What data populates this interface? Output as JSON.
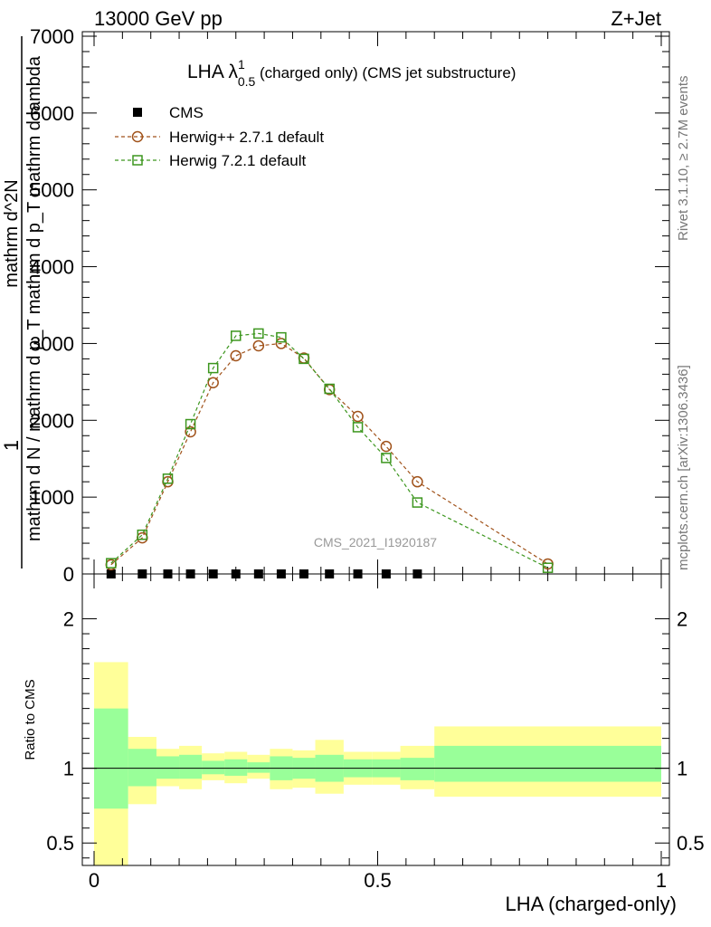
{
  "header": {
    "left": "13000 GeV pp",
    "right": "Z+Jet"
  },
  "side_labels": {
    "rivet": "Rivet 3.1.10, ≥ 2.7M events",
    "mcplots": "mcplots.cern.ch [arXiv:1306.3436]"
  },
  "watermark": "CMS_2021_I1920187",
  "chart_data": [
    {
      "type": "line",
      "title_main": "LHA λ",
      "title_sup": "1",
      "title_sub": "0.5",
      "title_rest": " (charged only) (CMS jet substructure)",
      "ylabel_main": "1",
      "ylabel_denom": "mathrm d N / mathrm d p_T mathrm d p_T mathrm d lambda",
      "ylabel_num": "mathrm d^2N",
      "xlim": [
        0,
        1
      ],
      "ylim": [
        0,
        7000
      ],
      "yticks": [
        0,
        1000,
        2000,
        3000,
        4000,
        5000,
        6000,
        7000
      ],
      "ytick_labels": [
        "0",
        "1000",
        "2000",
        "3000",
        "4000",
        "5000",
        "6000",
        "7000"
      ],
      "legend_position": "top-left",
      "x": [
        0.03,
        0.085,
        0.13,
        0.17,
        0.21,
        0.25,
        0.29,
        0.33,
        0.37,
        0.415,
        0.465,
        0.515,
        0.57,
        0.8
      ],
      "series": [
        {
          "name": "CMS",
          "marker": "square-filled",
          "color": "#000000",
          "y": [
            0,
            0,
            0,
            0,
            0,
            0,
            0,
            0,
            0,
            0,
            0,
            0,
            0,
            null
          ]
        },
        {
          "name": "Herwig++ 2.7.1 default",
          "marker": "circle-open",
          "color": "#a0521a",
          "y": [
            120,
            470,
            1200,
            1850,
            2490,
            2840,
            2970,
            3000,
            2810,
            2400,
            2050,
            1660,
            1200,
            130
          ]
        },
        {
          "name": "Herwig 7.2.1 default",
          "marker": "square-open",
          "color": "#3c961e",
          "y": [
            140,
            510,
            1240,
            1950,
            2680,
            3100,
            3130,
            3080,
            2800,
            2410,
            1910,
            1510,
            930,
            80
          ]
        }
      ]
    },
    {
      "type": "area",
      "ylabel": "Ratio to CMS",
      "xlabel": "LHA (charged-only)",
      "xlim": [
        0,
        1
      ],
      "ylim": [
        0.35,
        2.3
      ],
      "yticks": [
        0.5,
        1,
        2
      ],
      "ytick_labels": [
        "0.5",
        "1",
        "2"
      ],
      "xticks": [
        0,
        0.5,
        1
      ],
      "xtick_labels": [
        "0",
        "0.5",
        "1"
      ],
      "bins": [
        0,
        0.06,
        0.11,
        0.15,
        0.19,
        0.23,
        0.27,
        0.31,
        0.35,
        0.39,
        0.44,
        0.49,
        0.54,
        0.6,
        1.0
      ],
      "band_inner": {
        "color": "#99ff99",
        "lo": [
          0.73,
          0.88,
          0.93,
          0.93,
          0.96,
          0.95,
          0.97,
          0.92,
          0.93,
          0.91,
          0.94,
          0.94,
          0.92,
          0.91
        ],
        "hi": [
          1.4,
          1.13,
          1.08,
          1.09,
          1.05,
          1.06,
          1.04,
          1.08,
          1.07,
          1.09,
          1.06,
          1.06,
          1.07,
          1.15
        ]
      },
      "band_outer": {
        "color": "#ffff99",
        "lo": [
          0.35,
          0.76,
          0.88,
          0.86,
          0.92,
          0.9,
          0.93,
          0.86,
          0.87,
          0.83,
          0.89,
          0.89,
          0.86,
          0.81
        ],
        "hi": [
          1.71,
          1.21,
          1.13,
          1.15,
          1.1,
          1.11,
          1.09,
          1.13,
          1.12,
          1.19,
          1.11,
          1.11,
          1.15,
          1.28
        ]
      }
    }
  ]
}
